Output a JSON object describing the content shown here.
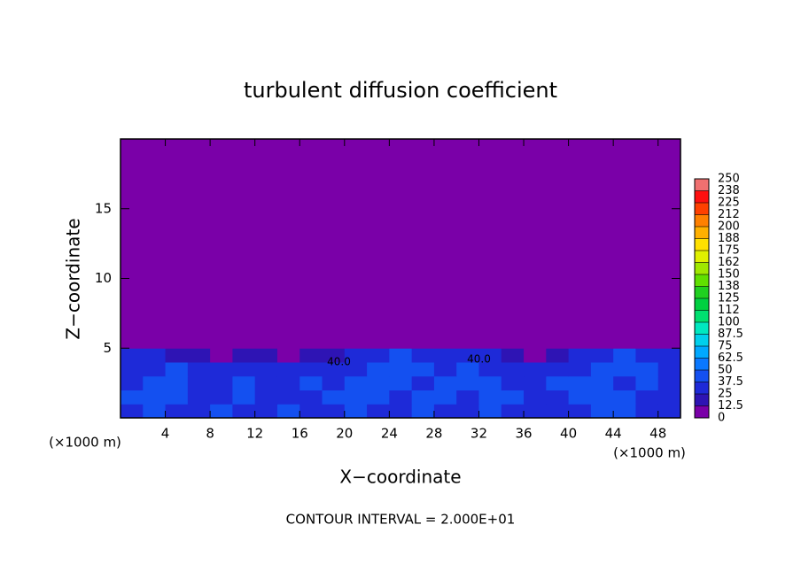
{
  "chart_data": {
    "type": "contour",
    "title": "turbulent diffusion coefficient",
    "x_label": "X−coordinate",
    "y_label": "Z−coordinate",
    "x_unit": "(×1000 m)",
    "y_unit": "(×1000 m)",
    "footer": "CONTOUR INTERVAL = 2.000E+01",
    "xlim": [
      0,
      50
    ],
    "ylim": [
      0,
      20
    ],
    "xticks": [
      4,
      8,
      12,
      16,
      20,
      24,
      28,
      32,
      36,
      40,
      44,
      48
    ],
    "yticks": [
      5,
      10,
      15
    ],
    "x_edges": [
      0,
      2,
      4,
      6,
      8,
      10,
      12,
      14,
      16,
      18,
      20,
      22,
      24,
      26,
      28,
      30,
      32,
      34,
      36,
      38,
      40,
      42,
      44,
      46,
      48,
      50
    ],
    "y_edges": [
      0,
      1,
      2,
      3,
      4,
      5,
      6,
      20
    ],
    "field": [
      [
        30,
        45,
        35,
        30,
        40,
        25,
        35,
        40,
        30,
        35,
        40,
        35,
        30,
        45,
        35,
        30,
        40,
        35,
        30,
        25,
        30,
        45,
        40,
        30,
        35
      ],
      [
        40,
        45,
        40,
        35,
        30,
        40,
        35,
        30,
        35,
        40,
        45,
        40,
        35,
        45,
        40,
        35,
        45,
        40,
        30,
        35,
        40,
        45,
        40,
        35,
        30
      ],
      [
        35,
        40,
        45,
        30,
        35,
        40,
        30,
        35,
        40,
        35,
        40,
        45,
        40,
        35,
        40,
        45,
        40,
        35,
        30,
        40,
        45,
        40,
        35,
        40,
        35
      ],
      [
        30,
        35,
        40,
        35,
        30,
        35,
        25,
        30,
        35,
        30,
        35,
        40,
        45,
        40,
        35,
        40,
        35,
        30,
        25,
        30,
        35,
        40,
        45,
        40,
        35
      ],
      [
        25,
        30,
        20,
        15,
        10,
        20,
        15,
        10,
        15,
        20,
        25,
        30,
        40,
        35,
        30,
        25,
        30,
        20,
        10,
        15,
        25,
        35,
        40,
        30,
        25
      ],
      [
        0,
        5,
        0,
        0,
        0,
        0,
        0,
        0,
        0,
        0,
        0,
        0,
        5,
        5,
        0,
        0,
        0,
        0,
        0,
        0,
        0,
        5,
        10,
        0,
        0
      ],
      [
        0,
        0,
        0,
        0,
        0,
        0,
        0,
        0,
        0,
        0,
        0,
        0,
        0,
        0,
        0,
        0,
        0,
        0,
        0,
        0,
        0,
        0,
        0,
        0,
        0
      ]
    ],
    "levels": [
      0,
      12.5,
      25,
      37.5,
      50,
      62.5,
      75,
      87.5,
      100,
      112,
      125,
      138,
      150,
      162,
      175,
      188,
      200,
      212,
      225,
      238,
      250
    ],
    "level_colors": [
      "#7a00a8",
      "#2e14b4",
      "#1e2ad8",
      "#1450f0",
      "#0a78ff",
      "#00a8ff",
      "#00d0ec",
      "#00e8c0",
      "#00e070",
      "#00d040",
      "#20d020",
      "#60e000",
      "#a0e800",
      "#e0f000",
      "#ffe000",
      "#ffb000",
      "#ff8000",
      "#ff4000",
      "#ff1010",
      "#f07070"
    ],
    "annotations": [
      {
        "text": "40.0",
        "x": 19.5,
        "y": 4.0
      },
      {
        "text": "40.0",
        "x": 32.0,
        "y": 4.2
      }
    ]
  }
}
